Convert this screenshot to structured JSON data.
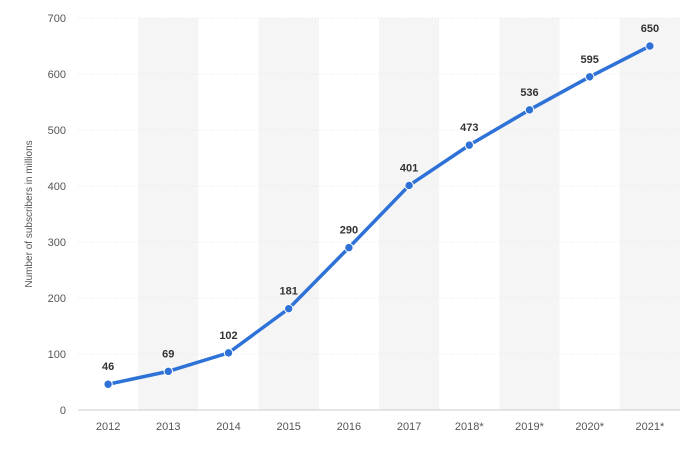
{
  "chart_data": {
    "type": "line",
    "ylabel": "Number of subscribers in millions",
    "ylim": [
      0,
      700
    ],
    "yticks": [
      0,
      100,
      200,
      300,
      400,
      500,
      600,
      700
    ],
    "categories": [
      "2012",
      "2013",
      "2014",
      "2015",
      "2016",
      "2017",
      "2018*",
      "2019*",
      "2020*",
      "2021*"
    ],
    "series": [
      {
        "values": [
          46,
          69,
          102,
          181,
          290,
          401,
          473,
          536,
          595,
          650
        ]
      }
    ],
    "line_color": "#2e72d8",
    "grid": true,
    "alternating_column_shading": "#f5f5f5",
    "data_labels": true
  }
}
